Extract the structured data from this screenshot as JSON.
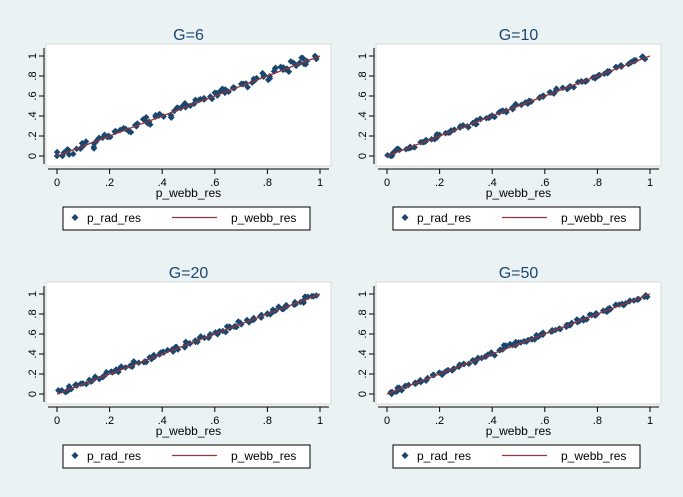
{
  "colors": {
    "background": "#eaf2f3",
    "plot_area": "#ffffff",
    "marker": "#1a476f",
    "line": "#90353b",
    "title": "#1a476f",
    "axis": "#000000"
  },
  "chart_data": [
    {
      "type": "scatter",
      "title": "G=6",
      "xlabel": "p_webb_res",
      "ylabel": "",
      "xlim": [
        0,
        1
      ],
      "ylim": [
        0,
        1
      ],
      "x_ticks": [
        "0",
        ".2",
        ".4",
        ".6",
        ".8",
        "1"
      ],
      "y_ticks": [
        "0",
        ".2",
        ".4",
        ".6",
        ".8",
        "1"
      ],
      "grid": false,
      "legend": {
        "placement": "bottom",
        "entries": [
          "p_rad_res",
          "p_webb_res"
        ]
      },
      "series": [
        {
          "name": "p_rad_res",
          "kind": "markers",
          "noise": 0.028,
          "points": [
            [
              0.01,
              0.02
            ],
            [
              0.03,
              0.05
            ],
            [
              0.05,
              0.04
            ],
            [
              0.08,
              0.09
            ],
            [
              0.1,
              0.12
            ],
            [
              0.13,
              0.1
            ],
            [
              0.15,
              0.16
            ],
            [
              0.18,
              0.2
            ],
            [
              0.2,
              0.19
            ],
            [
              0.23,
              0.24
            ],
            [
              0.25,
              0.28
            ],
            [
              0.28,
              0.26
            ],
            [
              0.3,
              0.32
            ],
            [
              0.33,
              0.36
            ],
            [
              0.35,
              0.33
            ],
            [
              0.38,
              0.4
            ],
            [
              0.4,
              0.42
            ],
            [
              0.43,
              0.41
            ],
            [
              0.45,
              0.47
            ],
            [
              0.48,
              0.5
            ],
            [
              0.5,
              0.49
            ],
            [
              0.53,
              0.55
            ],
            [
              0.55,
              0.58
            ],
            [
              0.58,
              0.57
            ],
            [
              0.6,
              0.62
            ],
            [
              0.63,
              0.66
            ],
            [
              0.65,
              0.64
            ],
            [
              0.68,
              0.7
            ],
            [
              0.7,
              0.73
            ],
            [
              0.73,
              0.71
            ],
            [
              0.75,
              0.77
            ],
            [
              0.78,
              0.82
            ],
            [
              0.8,
              0.78
            ],
            [
              0.83,
              0.86
            ],
            [
              0.85,
              0.88
            ],
            [
              0.88,
              0.86
            ],
            [
              0.9,
              0.92
            ],
            [
              0.93,
              0.96
            ],
            [
              0.95,
              0.93
            ],
            [
              0.98,
              0.99
            ]
          ]
        },
        {
          "name": "p_webb_res",
          "kind": "line",
          "x": [
            0,
            1
          ],
          "y": [
            0,
            1
          ]
        }
      ]
    },
    {
      "type": "scatter",
      "title": "G=10",
      "xlabel": "p_webb_res",
      "ylabel": "",
      "xlim": [
        0,
        1
      ],
      "ylim": [
        0,
        1
      ],
      "x_ticks": [
        "0",
        ".2",
        ".4",
        ".6",
        ".8",
        "1"
      ],
      "y_ticks": [
        "0",
        ".2",
        ".4",
        ".6",
        ".8",
        "1"
      ],
      "grid": false,
      "legend": {
        "placement": "bottom",
        "entries": [
          "p_rad_res",
          "p_webb_res"
        ]
      },
      "series": [
        {
          "name": "p_rad_res",
          "kind": "markers",
          "noise": 0.014,
          "points": [
            [
              0.01,
              0.01
            ],
            [
              0.03,
              0.03
            ],
            [
              0.05,
              0.06
            ],
            [
              0.08,
              0.08
            ],
            [
              0.1,
              0.1
            ],
            [
              0.13,
              0.14
            ],
            [
              0.15,
              0.15
            ],
            [
              0.18,
              0.18
            ],
            [
              0.2,
              0.21
            ],
            [
              0.23,
              0.23
            ],
            [
              0.25,
              0.25
            ],
            [
              0.28,
              0.29
            ],
            [
              0.3,
              0.3
            ],
            [
              0.33,
              0.33
            ],
            [
              0.35,
              0.36
            ],
            [
              0.38,
              0.38
            ],
            [
              0.4,
              0.4
            ],
            [
              0.43,
              0.44
            ],
            [
              0.45,
              0.45
            ],
            [
              0.48,
              0.48
            ],
            [
              0.5,
              0.51
            ],
            [
              0.53,
              0.53
            ],
            [
              0.55,
              0.55
            ],
            [
              0.58,
              0.59
            ],
            [
              0.6,
              0.6
            ],
            [
              0.63,
              0.63
            ],
            [
              0.65,
              0.66
            ],
            [
              0.68,
              0.68
            ],
            [
              0.7,
              0.7
            ],
            [
              0.73,
              0.74
            ],
            [
              0.75,
              0.75
            ],
            [
              0.78,
              0.78
            ],
            [
              0.8,
              0.81
            ],
            [
              0.83,
              0.83
            ],
            [
              0.85,
              0.85
            ],
            [
              0.88,
              0.89
            ],
            [
              0.9,
              0.9
            ],
            [
              0.93,
              0.93
            ],
            [
              0.95,
              0.96
            ],
            [
              0.98,
              0.98
            ]
          ]
        },
        {
          "name": "p_webb_res",
          "kind": "line",
          "x": [
            0,
            1
          ],
          "y": [
            0,
            1
          ]
        }
      ]
    },
    {
      "type": "scatter",
      "title": "G=20",
      "xlabel": "p_webb_res",
      "ylabel": "",
      "xlim": [
        0,
        1
      ],
      "ylim": [
        0,
        1
      ],
      "x_ticks": [
        "0",
        ".2",
        ".4",
        ".6",
        ".8",
        "1"
      ],
      "y_ticks": [
        "0",
        ".2",
        ".4",
        ".6",
        ".8",
        "1"
      ],
      "grid": false,
      "legend": {
        "placement": "bottom",
        "entries": [
          "p_rad_res",
          "p_webb_res"
        ]
      },
      "series": [
        {
          "name": "p_rad_res",
          "kind": "markers",
          "noise": 0.018,
          "points": [
            [
              0.01,
              0.02
            ],
            [
              0.03,
              0.03
            ],
            [
              0.05,
              0.06
            ],
            [
              0.08,
              0.08
            ],
            [
              0.1,
              0.11
            ],
            [
              0.13,
              0.13
            ],
            [
              0.15,
              0.16
            ],
            [
              0.18,
              0.18
            ],
            [
              0.2,
              0.21
            ],
            [
              0.23,
              0.23
            ],
            [
              0.25,
              0.26
            ],
            [
              0.28,
              0.28
            ],
            [
              0.3,
              0.31
            ],
            [
              0.33,
              0.33
            ],
            [
              0.35,
              0.36
            ],
            [
              0.38,
              0.38
            ],
            [
              0.4,
              0.41
            ],
            [
              0.43,
              0.43
            ],
            [
              0.45,
              0.46
            ],
            [
              0.48,
              0.48
            ],
            [
              0.5,
              0.51
            ],
            [
              0.53,
              0.53
            ],
            [
              0.55,
              0.56
            ],
            [
              0.58,
              0.58
            ],
            [
              0.6,
              0.61
            ],
            [
              0.63,
              0.63
            ],
            [
              0.65,
              0.66
            ],
            [
              0.68,
              0.68
            ],
            [
              0.7,
              0.71
            ],
            [
              0.73,
              0.73
            ],
            [
              0.75,
              0.76
            ],
            [
              0.78,
              0.78
            ],
            [
              0.8,
              0.81
            ],
            [
              0.83,
              0.83
            ],
            [
              0.85,
              0.86
            ],
            [
              0.88,
              0.88
            ],
            [
              0.9,
              0.91
            ],
            [
              0.93,
              0.93
            ],
            [
              0.95,
              0.96
            ],
            [
              0.98,
              0.99
            ]
          ]
        },
        {
          "name": "p_webb_res",
          "kind": "line",
          "x": [
            0,
            1
          ],
          "y": [
            0,
            1
          ]
        }
      ]
    },
    {
      "type": "scatter",
      "title": "G=50",
      "xlabel": "p_webb_res",
      "ylabel": "",
      "xlim": [
        0,
        1
      ],
      "ylim": [
        0,
        1
      ],
      "x_ticks": [
        "0",
        ".2",
        ".4",
        ".6",
        ".8",
        "1"
      ],
      "y_ticks": [
        "0",
        ".2",
        ".4",
        ".6",
        ".8",
        "1"
      ],
      "grid": false,
      "legend": {
        "placement": "bottom",
        "entries": [
          "p_rad_res",
          "p_webb_res"
        ]
      },
      "series": [
        {
          "name": "p_rad_res",
          "kind": "markers",
          "noise": 0.015,
          "points": [
            [
              0.01,
              0.01
            ],
            [
              0.03,
              0.03
            ],
            [
              0.05,
              0.05
            ],
            [
              0.08,
              0.08
            ],
            [
              0.1,
              0.1
            ],
            [
              0.13,
              0.13
            ],
            [
              0.15,
              0.15
            ],
            [
              0.18,
              0.18
            ],
            [
              0.2,
              0.2
            ],
            [
              0.23,
              0.23
            ],
            [
              0.25,
              0.25
            ],
            [
              0.28,
              0.28
            ],
            [
              0.3,
              0.3
            ],
            [
              0.33,
              0.33
            ],
            [
              0.35,
              0.35
            ],
            [
              0.38,
              0.38
            ],
            [
              0.4,
              0.4
            ],
            [
              0.43,
              0.45
            ],
            [
              0.45,
              0.48
            ],
            [
              0.48,
              0.5
            ],
            [
              0.5,
              0.52
            ],
            [
              0.53,
              0.53
            ],
            [
              0.55,
              0.55
            ],
            [
              0.58,
              0.58
            ],
            [
              0.6,
              0.6
            ],
            [
              0.63,
              0.63
            ],
            [
              0.65,
              0.65
            ],
            [
              0.68,
              0.68
            ],
            [
              0.7,
              0.7
            ],
            [
              0.73,
              0.73
            ],
            [
              0.75,
              0.75
            ],
            [
              0.78,
              0.78
            ],
            [
              0.8,
              0.8
            ],
            [
              0.83,
              0.83
            ],
            [
              0.85,
              0.85
            ],
            [
              0.88,
              0.88
            ],
            [
              0.9,
              0.9
            ],
            [
              0.93,
              0.93
            ],
            [
              0.95,
              0.95
            ],
            [
              0.98,
              0.98
            ]
          ]
        },
        {
          "name": "p_webb_res",
          "kind": "line",
          "x": [
            0,
            1
          ],
          "y": [
            0,
            1
          ]
        }
      ]
    }
  ]
}
